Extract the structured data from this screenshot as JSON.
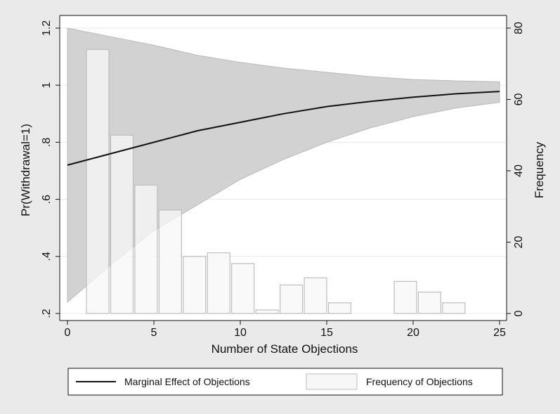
{
  "chart_data": {
    "type": "bar+line+area",
    "xlabel": "Number of State Objections",
    "ylabel_left": "Pr(Withdrawal=1)",
    "ylabel_right": "Frequency",
    "xlim": [
      0,
      25
    ],
    "ylim_left": [
      0.2,
      1.2
    ],
    "ylim_right": [
      0,
      80
    ],
    "x_ticks": [
      "0",
      "5",
      "10",
      "15",
      "20",
      "25"
    ],
    "y_left_ticks": [
      ".2",
      ".4",
      ".6",
      ".8",
      "1",
      "1.2"
    ],
    "y_right_ticks": [
      "0",
      "20",
      "40",
      "60",
      "80"
    ],
    "grid": true,
    "legend_position": "bottom",
    "series": [
      {
        "name": "Marginal Effect of Objections",
        "kind": "line",
        "axis": "left",
        "x": [
          0,
          2.5,
          5,
          7.5,
          10,
          12.5,
          15,
          17.5,
          20,
          22.5,
          25
        ],
        "y": [
          0.72,
          0.76,
          0.8,
          0.84,
          0.87,
          0.9,
          0.925,
          0.943,
          0.958,
          0.97,
          0.978
        ]
      },
      {
        "name": "",
        "kind": "confidence_band",
        "axis": "left",
        "x": [
          0,
          2.5,
          5,
          7.5,
          10,
          12.5,
          15,
          17.5,
          20,
          22.5,
          25
        ],
        "upper": [
          1.2,
          1.17,
          1.14,
          1.105,
          1.08,
          1.06,
          1.045,
          1.03,
          1.02,
          1.015,
          1.012
        ],
        "lower": [
          0.24,
          0.37,
          0.49,
          0.58,
          0.67,
          0.74,
          0.8,
          0.85,
          0.89,
          0.92,
          0.94
        ]
      },
      {
        "name": "Frequency of Objections",
        "kind": "histogram",
        "axis": "right",
        "bins": [
          {
            "start": 1.1,
            "end": 2.4,
            "value": 74
          },
          {
            "start": 2.5,
            "end": 3.8,
            "value": 50
          },
          {
            "start": 3.9,
            "end": 5.2,
            "value": 36
          },
          {
            "start": 5.3,
            "end": 6.6,
            "value": 29
          },
          {
            "start": 6.7,
            "end": 8.0,
            "value": 16
          },
          {
            "start": 8.1,
            "end": 9.4,
            "value": 17
          },
          {
            "start": 9.5,
            "end": 10.8,
            "value": 14
          },
          {
            "start": 10.9,
            "end": 12.2,
            "value": 1
          },
          {
            "start": 12.3,
            "end": 13.6,
            "value": 8
          },
          {
            "start": 13.7,
            "end": 15.0,
            "value": 10
          },
          {
            "start": 15.1,
            "end": 16.4,
            "value": 3
          },
          {
            "start": 18.9,
            "end": 20.2,
            "value": 9
          },
          {
            "start": 20.3,
            "end": 21.6,
            "value": 6
          },
          {
            "start": 21.7,
            "end": 23.0,
            "value": 3
          }
        ]
      }
    ],
    "legend": [
      {
        "label": "Marginal Effect of Objections",
        "symbol": "line"
      },
      {
        "label": "Frequency of Objections",
        "symbol": "box"
      }
    ],
    "colors": {
      "background": "#eaeaea",
      "plot_background": "#ffffff",
      "band_fill": "#d2d2d2",
      "band_stroke": "#b9b9b9",
      "bar_fill": "#f7f7f7",
      "bar_stroke": "#bdbdbd",
      "line": "#111111",
      "grid": "#e8e8e8"
    }
  }
}
